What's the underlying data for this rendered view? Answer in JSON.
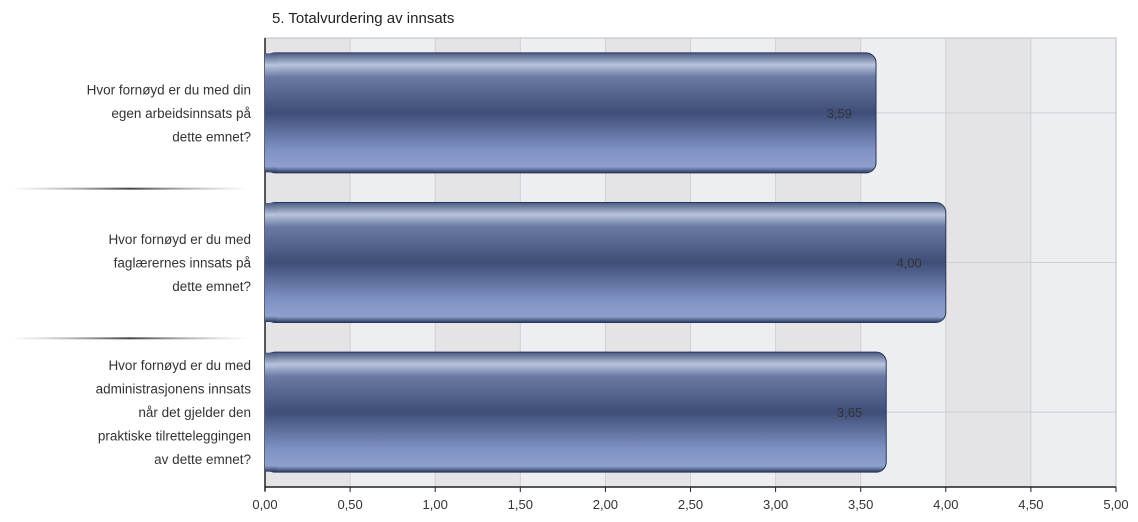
{
  "chart_data": {
    "type": "bar",
    "orientation": "horizontal",
    "title": "5. Totalvurdering av innsats",
    "categories": [
      [
        "Hvor fornøyd er du med din",
        "egen arbeidsinnsats på",
        "dette emnet?"
      ],
      [
        "Hvor fornøyd er du med",
        "faglærernes innsats på",
        "dette emnet?"
      ],
      [
        "Hvor fornøyd er du med",
        "administrasjonens innsats",
        "når det gjelder den",
        "praktiske tilretteleggingen",
        "av dette emnet?"
      ]
    ],
    "values": [
      3.59,
      4.0,
      3.65
    ],
    "value_labels": [
      "3,59",
      "4,00",
      "3,65"
    ],
    "xlim": [
      0,
      5
    ],
    "xticks": [
      "0,00",
      "0,50",
      "1,00",
      "1,50",
      "2,00",
      "2,50",
      "3,00",
      "3,50",
      "4,00",
      "4,50",
      "5,00"
    ],
    "grid": true,
    "bar_color": "#6b80b3"
  }
}
